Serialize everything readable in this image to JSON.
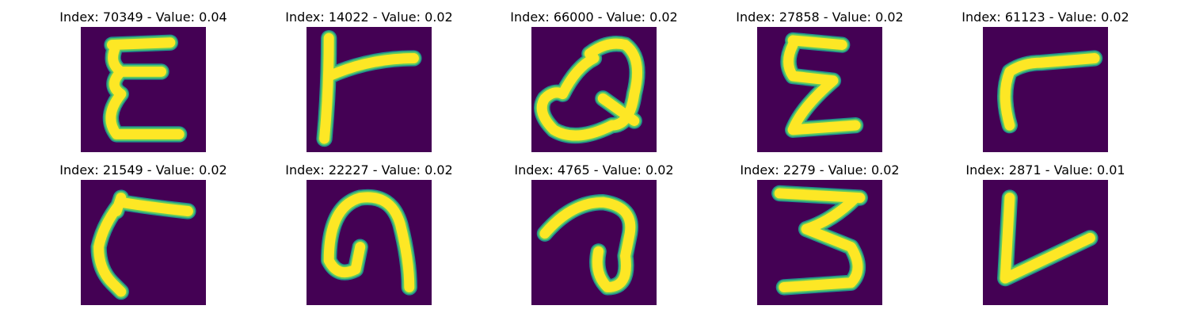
{
  "colors": {
    "background": "#440154",
    "stroke_edge": "#21918c",
    "stroke_mid": "#5ec962",
    "stroke_core": "#fde725"
  },
  "panels": [
    {
      "title": "Index: 70349 - Value: 0.04",
      "glyph": "E"
    },
    {
      "title": "Index: 14022 - Value: 0.02",
      "glyph": "r"
    },
    {
      "title": "Index: 66000 - Value: 0.02",
      "glyph": "Q"
    },
    {
      "title": "Index: 27858 - Value: 0.02",
      "glyph": "E"
    },
    {
      "title": "Index: 61123 - Value: 0.02",
      "glyph": "r"
    },
    {
      "title": "Index: 21549 - Value: 0.02",
      "glyph": "r"
    },
    {
      "title": "Index: 22227 - Value: 0.02",
      "glyph": "n"
    },
    {
      "title": "Index: 4765 - Value: 0.02",
      "glyph": "a"
    },
    {
      "title": "Index: 2279 - Value: 0.02",
      "glyph": "3"
    },
    {
      "title": "Index: 2871 - Value: 0.01",
      "glyph": "L"
    }
  ]
}
